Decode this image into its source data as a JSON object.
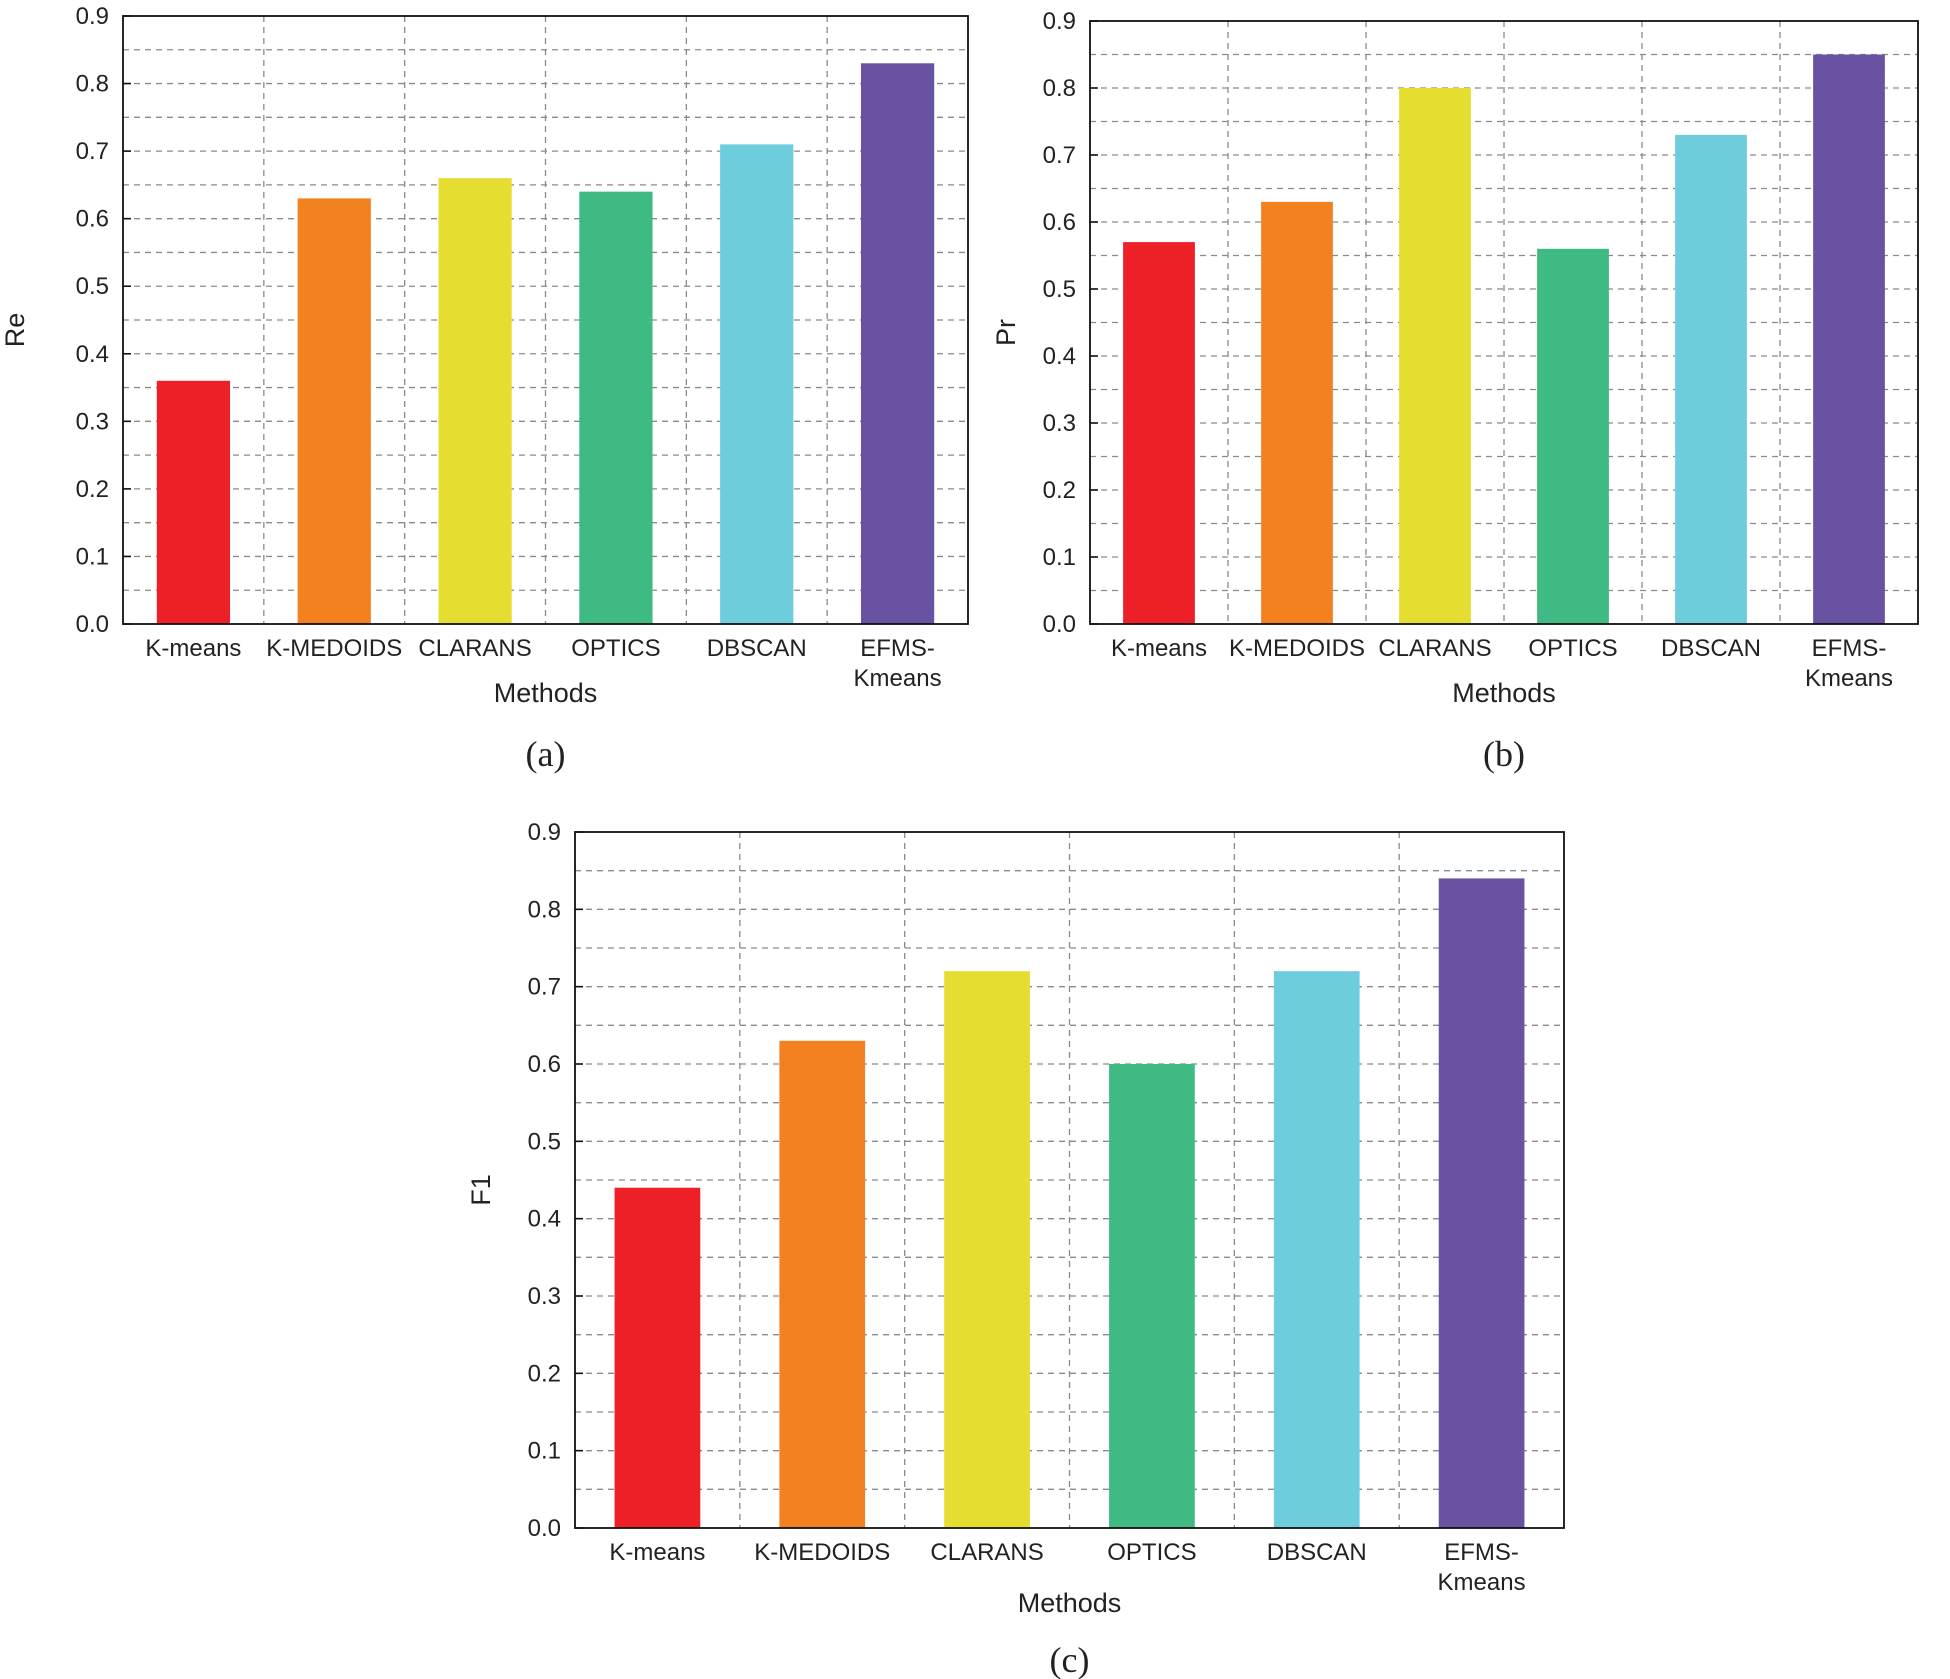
{
  "chart_data": [
    {
      "type": "bar",
      "panel_label": "(a)",
      "xlabel": "Methods",
      "ylabel": "Re",
      "ylim": [
        0,
        0.9
      ],
      "yticks": [
        "0.0",
        "0.1",
        "0.2",
        "0.3",
        "0.4",
        "0.5",
        "0.6",
        "0.7",
        "0.8",
        "0.9"
      ],
      "grid": true,
      "categories": [
        [
          "K-means"
        ],
        [
          "K-MEDOIDS"
        ],
        [
          "CLARANS"
        ],
        [
          "OPTICS"
        ],
        [
          "DBSCAN"
        ],
        [
          "EFMS-",
          "Kmeans"
        ]
      ],
      "values": [
        0.36,
        0.63,
        0.66,
        0.64,
        0.71,
        0.83
      ],
      "colors": [
        "#ed1f27",
        "#f38120",
        "#e5de31",
        "#3fba83",
        "#6ecddc",
        "#6a52a2"
      ]
    },
    {
      "type": "bar",
      "panel_label": "(b)",
      "xlabel": "Methods",
      "ylabel": "Pr",
      "ylim": [
        0,
        0.9
      ],
      "yticks": [
        "0.0",
        "0.1",
        "0.2",
        "0.3",
        "0.4",
        "0.5",
        "0.6",
        "0.7",
        "0.8",
        "0.9"
      ],
      "grid": true,
      "categories": [
        [
          "K-means"
        ],
        [
          "K-MEDOIDS"
        ],
        [
          "CLARANS"
        ],
        [
          "OPTICS"
        ],
        [
          "DBSCAN"
        ],
        [
          "EFMS-",
          "Kmeans"
        ]
      ],
      "values": [
        0.57,
        0.63,
        0.8,
        0.56,
        0.73,
        0.85
      ],
      "colors": [
        "#ed1f27",
        "#f38120",
        "#e5de31",
        "#3fba83",
        "#6ecddc",
        "#6a52a2"
      ]
    },
    {
      "type": "bar",
      "panel_label": "(c)",
      "xlabel": "Methods",
      "ylabel": "F1",
      "ylim": [
        0,
        0.9
      ],
      "yticks": [
        "0.0",
        "0.1",
        "0.2",
        "0.3",
        "0.4",
        "0.5",
        "0.6",
        "0.7",
        "0.8",
        "0.9"
      ],
      "grid": true,
      "categories": [
        [
          "K-means"
        ],
        [
          "K-MEDOIDS"
        ],
        [
          "CLARANS"
        ],
        [
          "OPTICS"
        ],
        [
          "DBSCAN"
        ],
        [
          "EFMS-",
          "Kmeans"
        ]
      ],
      "values": [
        0.44,
        0.63,
        0.72,
        0.6,
        0.72,
        0.84
      ],
      "colors": [
        "#ed1f27",
        "#f38120",
        "#e5de31",
        "#3fba83",
        "#6ecddc",
        "#6a52a2"
      ]
    }
  ]
}
